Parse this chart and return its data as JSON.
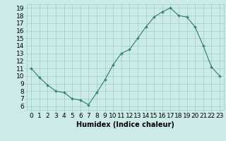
{
  "x": [
    0,
    1,
    2,
    3,
    4,
    5,
    6,
    7,
    8,
    9,
    10,
    11,
    12,
    13,
    14,
    15,
    16,
    17,
    18,
    19,
    20,
    21,
    22,
    23
  ],
  "y": [
    11.0,
    9.8,
    8.8,
    8.0,
    7.8,
    7.0,
    6.8,
    6.2,
    7.8,
    9.5,
    11.5,
    13.0,
    13.5,
    15.0,
    16.5,
    17.8,
    18.5,
    19.0,
    18.0,
    17.8,
    16.5,
    14.0,
    11.2,
    10.0
  ],
  "xlabel": "Humidex (Indice chaleur)",
  "ylabel_ticks": [
    6,
    7,
    8,
    9,
    10,
    11,
    12,
    13,
    14,
    15,
    16,
    17,
    18,
    19
  ],
  "xlim": [
    -0.5,
    23.5
  ],
  "ylim": [
    5.5,
    19.5
  ],
  "line_color": "#2e7d6e",
  "marker_color": "#2e7d6e",
  "bg_color": "#cceae7",
  "grid_color": "#99cec8",
  "axes_bg": "#cceae7",
  "fig_bg": "#cceae7",
  "xlabel_fontsize": 7,
  "tick_fontsize": 6.5
}
